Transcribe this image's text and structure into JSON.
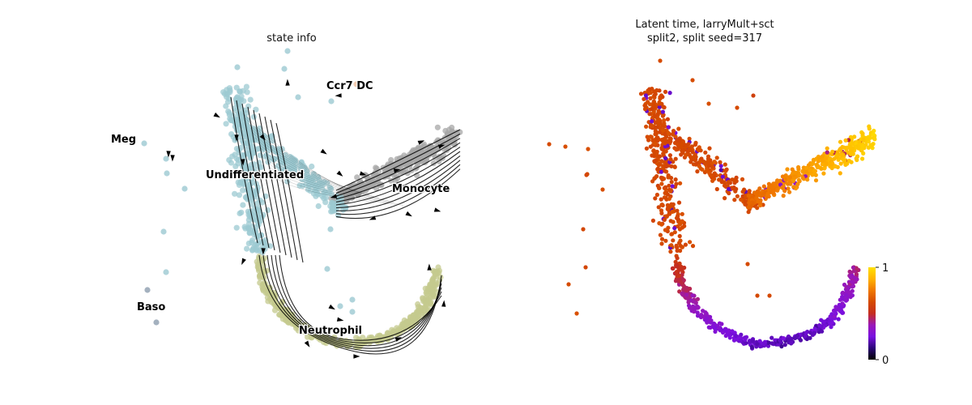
{
  "colors": {
    "undifferentiated": "#9cc9d2",
    "monocyte": "#a7a7a7",
    "neutrophil": "#c4c98e",
    "baso": "#9aa8b8",
    "ccr7dc": "#f2c7a8",
    "meg": "#9cc9d2",
    "stream": "#000000",
    "colormap": [
      "#000000",
      "#2b0578",
      "#7a10e0",
      "#9a18b8",
      "#c52e20",
      "#d54a00",
      "#f07800",
      "#ffb300",
      "#ffe000"
    ]
  },
  "chart_data": [
    {
      "type": "scatter",
      "panel": "left",
      "title": "state info",
      "grid": false,
      "axes_visible": false,
      "legend": "on data",
      "overlay": "velocity streamlines with arrowheads",
      "categories": [
        "Meg",
        "Ccr7 DC",
        "Undifferentiated",
        "Monocyte",
        "Baso",
        "Neutrophil"
      ]
    },
    {
      "type": "scatter",
      "panel": "right",
      "title_lines": [
        "Latent time, larryMult+sct",
        "split2, split seed=317"
      ],
      "grid": false,
      "axes_visible": false,
      "colorbar": {
        "position": "right",
        "min_label": "0",
        "max_label": "1",
        "range": [
          0,
          1
        ],
        "colormap": "gnuplot"
      }
    }
  ]
}
